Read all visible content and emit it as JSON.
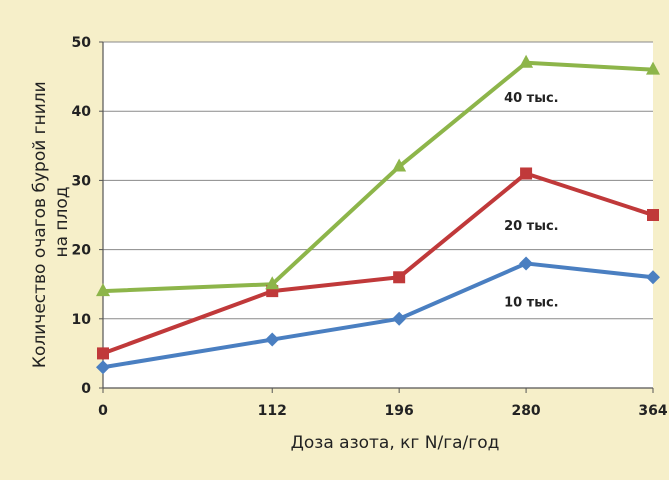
{
  "chart_data": {
    "type": "line",
    "xlabel": "Доза азота, кг N/га/год",
    "ylabel_lines": [
      "Количество очагов бурой гнили",
      "на плод"
    ],
    "x": [
      0,
      112,
      196,
      280,
      364
    ],
    "x_tick_labels": [
      "0",
      "112",
      "196",
      "280",
      "364"
    ],
    "ylim": [
      0,
      50
    ],
    "y_ticks": [
      0,
      10,
      20,
      30,
      40,
      50
    ],
    "grid": true,
    "series": [
      {
        "name": "10 тыс.",
        "color": "#4a7fc1",
        "marker": "diamond",
        "values": [
          3,
          7,
          10,
          18,
          16
        ]
      },
      {
        "name": "20 тыс.",
        "color": "#c0393a",
        "marker": "square",
        "values": [
          5,
          14,
          16,
          31,
          25
        ]
      },
      {
        "name": "40 тыс.",
        "color": "#8db54a",
        "marker": "triangle",
        "values": [
          14,
          15,
          32,
          47,
          46
        ]
      }
    ]
  }
}
